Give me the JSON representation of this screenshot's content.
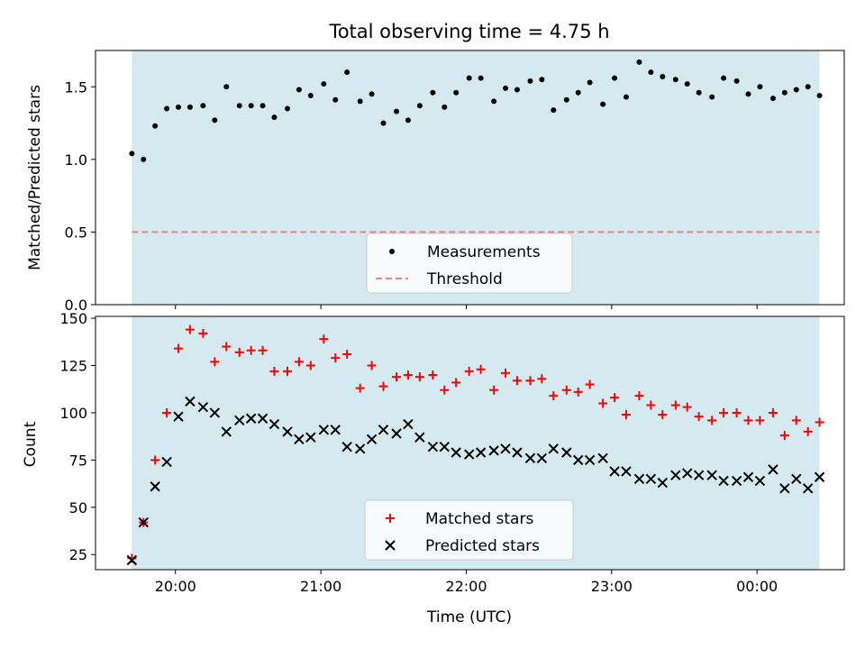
{
  "title": "Total observing time = 4.75 h",
  "colors": {
    "shade": "#d4eaf0",
    "measurement": "#000000",
    "threshold": "#f08080",
    "matched": "#ff0000",
    "predicted": "#000000"
  },
  "chart_data": [
    {
      "type": "scatter",
      "ylabel": "Matched/Predicted stars",
      "x_unit": "hours",
      "xlim": [
        19.45,
        24.6
      ],
      "ylim": [
        0.0,
        1.75
      ],
      "yticks": [
        0.0,
        0.5,
        1.0,
        1.5
      ],
      "ytick_labels": [
        "0.0",
        "0.5",
        "1.0",
        "1.5"
      ],
      "shaded_x_range": [
        19.7,
        24.43
      ],
      "threshold": 0.5,
      "legend": {
        "location": "bottom-center",
        "labels": [
          "Measurements",
          "Threshold"
        ]
      },
      "series": [
        {
          "name": "Measurements",
          "marker": "dot",
          "x": [
            19.7,
            19.78,
            19.86,
            19.94,
            20.02,
            20.1,
            20.19,
            20.27,
            20.35,
            20.44,
            20.52,
            20.6,
            20.68,
            20.77,
            20.85,
            20.93,
            21.02,
            21.1,
            21.18,
            21.27,
            21.35,
            21.43,
            21.52,
            21.6,
            21.68,
            21.77,
            21.85,
            21.93,
            22.02,
            22.1,
            22.19,
            22.27,
            22.35,
            22.44,
            22.52,
            22.6,
            22.69,
            22.77,
            22.85,
            22.94,
            23.02,
            23.1,
            23.19,
            23.27,
            23.35,
            23.44,
            23.52,
            23.6,
            23.69,
            23.77,
            23.86,
            23.94,
            24.02,
            24.11,
            24.19,
            24.27,
            24.35,
            24.43
          ],
          "y": [
            1.04,
            1.0,
            1.23,
            1.35,
            1.36,
            1.36,
            1.37,
            1.27,
            1.5,
            1.37,
            1.37,
            1.37,
            1.29,
            1.35,
            1.48,
            1.44,
            1.52,
            1.41,
            1.6,
            1.4,
            1.45,
            1.25,
            1.33,
            1.27,
            1.37,
            1.46,
            1.36,
            1.46,
            1.56,
            1.56,
            1.4,
            1.49,
            1.48,
            1.54,
            1.55,
            1.34,
            1.41,
            1.46,
            1.53,
            1.38,
            1.56,
            1.43,
            1.67,
            1.6,
            1.57,
            1.55,
            1.52,
            1.46,
            1.43,
            1.56,
            1.54,
            1.45,
            1.5,
            1.42,
            1.46,
            1.48,
            1.5,
            1.44
          ]
        },
        {
          "name": "Threshold",
          "type": "line",
          "style": "dashed",
          "x": [
            19.7,
            24.43
          ],
          "y": [
            0.5,
            0.5
          ]
        }
      ]
    },
    {
      "type": "scatter",
      "xlabel": "Time (UTC)",
      "ylabel": "Count",
      "x_unit": "hours",
      "xlim": [
        19.45,
        24.6
      ],
      "ylim": [
        17,
        151
      ],
      "yticks": [
        25,
        50,
        75,
        100,
        125,
        150
      ],
      "ytick_labels": [
        "25",
        "50",
        "75",
        "100",
        "125",
        "150"
      ],
      "xticks": [
        20,
        21,
        22,
        23,
        24
      ],
      "xtick_labels": [
        "20:00",
        "21:00",
        "22:00",
        "23:00",
        "00:00"
      ],
      "shaded_x_range": [
        19.7,
        24.43
      ],
      "legend": {
        "location": "bottom-center",
        "labels": [
          "Matched stars",
          "Predicted stars"
        ]
      },
      "series": [
        {
          "name": "Matched stars",
          "marker": "plus",
          "x": [
            19.7,
            19.78,
            19.86,
            19.94,
            20.02,
            20.1,
            20.19,
            20.27,
            20.35,
            20.44,
            20.52,
            20.6,
            20.68,
            20.77,
            20.85,
            20.93,
            21.02,
            21.1,
            21.18,
            21.27,
            21.35,
            21.43,
            21.52,
            21.6,
            21.68,
            21.77,
            21.85,
            21.93,
            22.02,
            22.1,
            22.19,
            22.27,
            22.35,
            22.44,
            22.52,
            22.6,
            22.69,
            22.77,
            22.85,
            22.94,
            23.02,
            23.1,
            23.19,
            23.27,
            23.35,
            23.44,
            23.52,
            23.6,
            23.69,
            23.77,
            23.86,
            23.94,
            24.02,
            24.11,
            24.19,
            24.27,
            24.35,
            24.43
          ],
          "y": [
            23,
            42,
            75,
            100,
            134,
            144,
            142,
            127,
            135,
            132,
            133,
            133,
            122,
            122,
            127,
            125,
            139,
            129,
            131,
            113,
            125,
            114,
            119,
            120,
            119,
            120,
            112,
            116,
            122,
            123,
            112,
            121,
            117,
            117,
            118,
            109,
            112,
            111,
            115,
            105,
            108,
            99,
            109,
            104,
            99,
            104,
            103,
            98,
            96,
            100,
            100,
            96,
            96,
            100,
            88,
            96,
            90,
            95
          ]
        },
        {
          "name": "Predicted stars",
          "marker": "x",
          "x": [
            19.7,
            19.78,
            19.86,
            19.94,
            20.02,
            20.1,
            20.19,
            20.27,
            20.35,
            20.44,
            20.52,
            20.6,
            20.68,
            20.77,
            20.85,
            20.93,
            21.02,
            21.1,
            21.18,
            21.27,
            21.35,
            21.43,
            21.52,
            21.6,
            21.68,
            21.77,
            21.85,
            21.93,
            22.02,
            22.1,
            22.19,
            22.27,
            22.35,
            22.44,
            22.52,
            22.6,
            22.69,
            22.77,
            22.85,
            22.94,
            23.02,
            23.1,
            23.19,
            23.27,
            23.35,
            23.44,
            23.52,
            23.6,
            23.69,
            23.77,
            23.86,
            23.94,
            24.02,
            24.11,
            24.19,
            24.27,
            24.35,
            24.43
          ],
          "y": [
            22,
            42,
            61,
            74,
            98,
            106,
            103,
            100,
            90,
            96,
            97,
            97,
            94,
            90,
            86,
            87,
            91,
            91,
            82,
            81,
            86,
            91,
            89,
            94,
            87,
            82,
            82,
            79,
            78,
            79,
            80,
            81,
            79,
            76,
            76,
            81,
            79,
            75,
            75,
            76,
            69,
            69,
            65,
            65,
            63,
            67,
            68,
            67,
            67,
            64,
            64,
            66,
            64,
            70,
            60,
            65,
            60,
            66
          ]
        }
      ]
    }
  ]
}
